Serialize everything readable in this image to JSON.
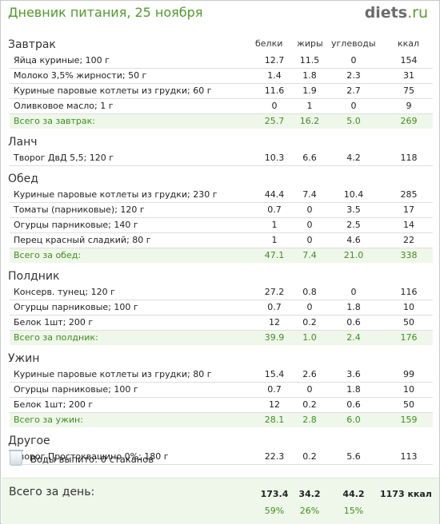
{
  "page": {
    "title": "Дневник питания, 25 ноября",
    "logo_main": "diets",
    "logo_tld": ".ru"
  },
  "columns": {
    "protein": "белки",
    "fat": "жиры",
    "carbs": "углеводы",
    "kcal": "ккал"
  },
  "meals": [
    {
      "title": "Завтрак",
      "items": [
        [
          "Яйца куриные; 100 г",
          "12.7",
          "11.5",
          "0",
          "154"
        ],
        [
          "Молоко 3,5% жирности; 50 г",
          "1.4",
          "1.8",
          "2.3",
          "31"
        ],
        [
          "Куриные паровые котлеты из грудки; 60 г",
          "11.6",
          "1.9",
          "2.7",
          "75"
        ],
        [
          "Оливковое масло; 1 г",
          "0",
          "1",
          "0",
          "9"
        ]
      ],
      "total": [
        "Всего за завтрак:",
        "25.7",
        "16.2",
        "5.0",
        "269"
      ]
    },
    {
      "title": "Ланч",
      "items": [
        [
          "Творог ДвД 5,5; 120 г",
          "10.3",
          "6.6",
          "4.2",
          "118"
        ]
      ]
    },
    {
      "title": "Обед",
      "items": [
        [
          "Куриные паровые котлеты из грудки; 230 г",
          "44.4",
          "7.4",
          "10.4",
          "285"
        ],
        [
          "Томаты (парниковые); 120 г",
          "0.7",
          "0",
          "3.5",
          "17"
        ],
        [
          "Огурцы парниковые; 140 г",
          "1",
          "0",
          "2.5",
          "14"
        ],
        [
          "Перец красный сладкий; 80 г",
          "1",
          "0",
          "4.6",
          "22"
        ]
      ],
      "total": [
        "Всего за обед:",
        "47.1",
        "7.4",
        "21.0",
        "338"
      ]
    },
    {
      "title": "Полдник",
      "items": [
        [
          "Консерв. тунец; 120 г",
          "27.2",
          "0.8",
          "0",
          "116"
        ],
        [
          "Огурцы парниковые; 100 г",
          "0.7",
          "0",
          "1.8",
          "10"
        ],
        [
          "Белок 1шт; 200 г",
          "12",
          "0.2",
          "0.6",
          "50"
        ]
      ],
      "total": [
        "Всего за полдник:",
        "39.9",
        "1.0",
        "2.4",
        "176"
      ]
    },
    {
      "title": "Ужин",
      "items": [
        [
          "Куриные паровые котлеты из грудки; 80 г",
          "15.4",
          "2.6",
          "3.6",
          "99"
        ],
        [
          "Огурцы парниковые; 100 г",
          "0.7",
          "0",
          "1.8",
          "10"
        ],
        [
          "Белок 1шт; 200 г",
          "12",
          "0.2",
          "0.6",
          "50"
        ]
      ],
      "total": [
        "Всего за ужин:",
        "28.1",
        "2.8",
        "6.0",
        "159"
      ]
    },
    {
      "title": "Другое",
      "items": [
        [
          "Творог Простоквашино 0%; 180 г",
          "22.3",
          "0.2",
          "5.6",
          "113"
        ]
      ]
    }
  ],
  "water": {
    "icon": "water-glass-icon",
    "text": "Воды выпито: 0 стаканов"
  },
  "day_total": {
    "label": "Всего за день:",
    "protein": "173.4",
    "fat": "34.2",
    "carbs": "44.2",
    "kcal": "1173 ккал",
    "protein_pct": "59%",
    "fat_pct": "26%",
    "carbs_pct": "15%"
  },
  "colors": {
    "accent_green": "#4f9b2a",
    "total_bg": "#eef7e9"
  }
}
